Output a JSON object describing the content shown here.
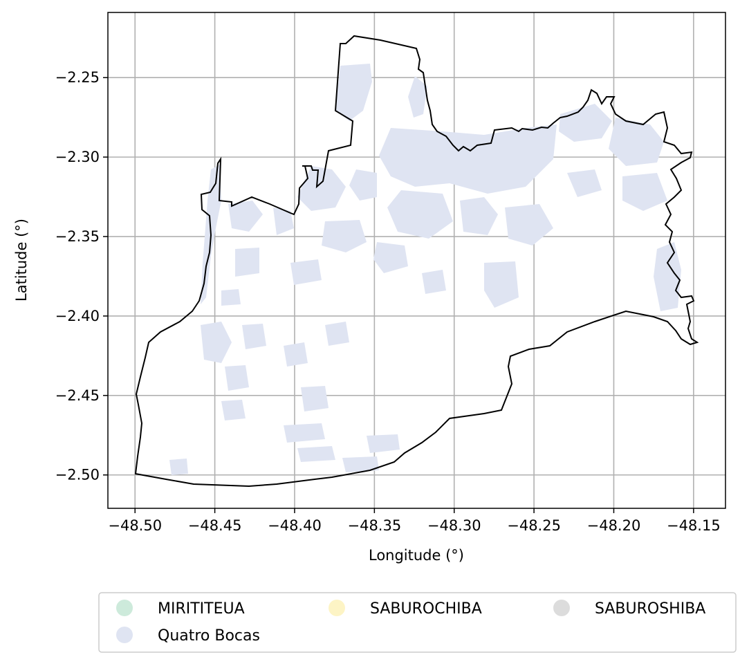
{
  "map": {
    "xlabel": "Longitude (°)",
    "ylabel": "Latitude (°)",
    "xlim": [
      -48.517,
      -48.13
    ],
    "ylim": [
      -2.521,
      -2.209
    ],
    "x_ticks": [
      -48.5,
      -48.45,
      -48.4,
      -48.35,
      -48.3,
      -48.25,
      -48.2,
      -48.15
    ],
    "x_tick_labels": [
      "−48.50",
      "−48.45",
      "−48.40",
      "−48.35",
      "−48.30",
      "−48.25",
      "−48.20",
      "−48.15"
    ],
    "y_ticks": [
      -2.25,
      -2.3,
      -2.35,
      -2.4,
      -2.45,
      -2.5
    ],
    "y_tick_labels": [
      "−2.25",
      "−2.30",
      "−2.35",
      "−2.40",
      "−2.45",
      "−2.50"
    ],
    "grid": true,
    "boundary_color": "#000000",
    "fill_color": "#dfe4f2"
  },
  "legend": {
    "placement": "below",
    "entries": [
      {
        "label": "MIRITITEUA",
        "color": "#cdeadb"
      },
      {
        "label": "SABUROCHIBA",
        "color": "#fdf4c5"
      },
      {
        "label": "SABUROSHIBA",
        "color": "#dcdcdc"
      },
      {
        "label": "Quatro Bocas",
        "color": "#dfe4f2"
      }
    ]
  }
}
